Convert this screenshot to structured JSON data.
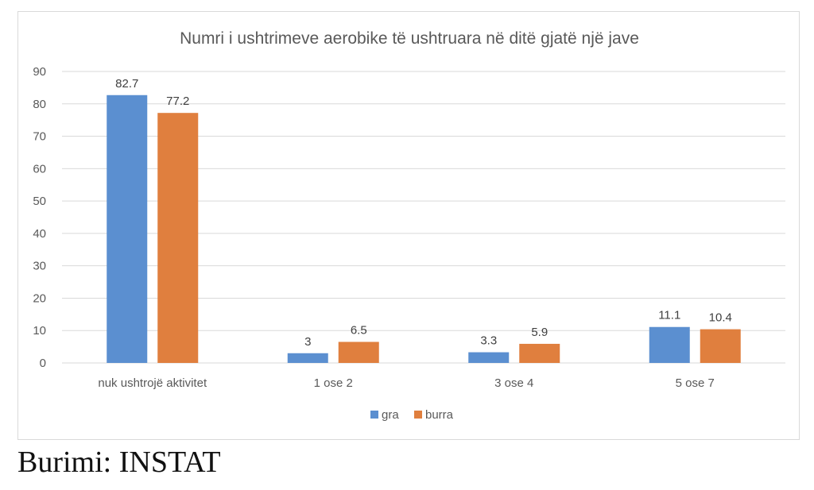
{
  "chart_data": {
    "type": "bar",
    "title": "Numri i ushtrimeve aerobike të ushtruara në ditë gjatë një jave",
    "categories": [
      "nuk ushtrojë aktivitet",
      "1 ose 2",
      "3 ose 4",
      "5 ose 7"
    ],
    "series": [
      {
        "name": "gra",
        "values": [
          82.7,
          3,
          3.3,
          11.1
        ],
        "labels": [
          "82.7",
          "3",
          "3.3",
          "11.1"
        ],
        "color": "#5b8fd0"
      },
      {
        "name": "burra",
        "values": [
          77.2,
          6.5,
          5.9,
          10.4
        ],
        "labels": [
          "77.2",
          "6.5",
          "5.9",
          "10.4"
        ],
        "color": "#e07f3e"
      }
    ],
    "ylim": [
      0,
      90
    ],
    "yticks": [
      0,
      10,
      20,
      30,
      40,
      50,
      60,
      70,
      80,
      90
    ],
    "grid": true,
    "legend_position": "bottom",
    "xlabel": "",
    "ylabel": ""
  },
  "source_note": "Burimi: INSTAT"
}
